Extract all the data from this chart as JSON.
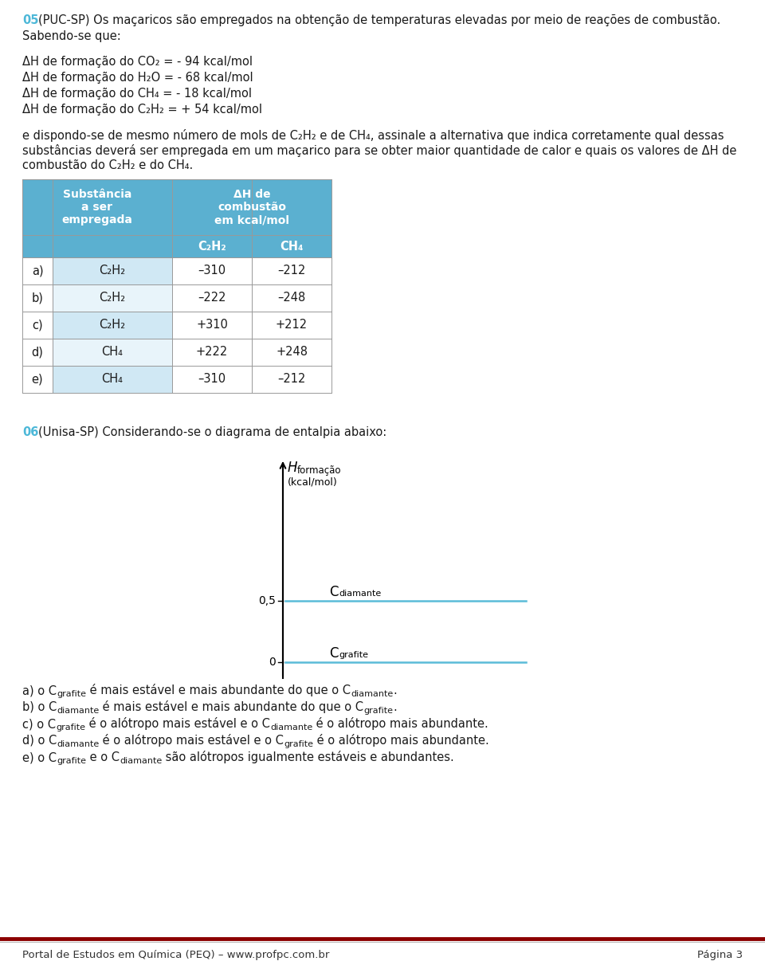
{
  "bg_color": "#ffffff",
  "q05_number": "05",
  "q05_number_color": "#4db8d8",
  "q05_header": "(PUC-SP) Os maçaricos são empregados na obtenção de temperaturas elevadas por meio de reações de combustão.",
  "q05_sabendo": "Sabendo-se que:",
  "q05_formacoes": [
    "ΔH de formação do CO₂ = - 94 kcal/mol",
    "ΔH de formação do H₂O = - 68 kcal/mol",
    "ΔH de formação do CH₄ = - 18 kcal/mol",
    "ΔH de formação do C₂H₂ = + 54 kcal/mol"
  ],
  "q05_body_lines": [
    "e dispondo-se de mesmo número de mols de C₂H₂ e de CH₄, assinale a alternativa que indica corretamente qual dessas",
    "substâncias deverá ser empregada em um maçarico para se obter maior quantidade de calor e quais os valores de ΔH de",
    "combustão do C₂H₂ e do CH₄."
  ],
  "table_header_bg": "#5bb0d0",
  "table_row_bg_even": "#d0e8f4",
  "table_row_bg_odd": "#e8f4fa",
  "table_header_col1": "Substância\na ser\nempregada",
  "table_header_col2": "ΔH de\ncombustão\nem kcal/mol",
  "table_subheader_c2h2": "C₂H₂",
  "table_subheader_ch4": "CH₄",
  "table_rows": [
    [
      "a)",
      "C₂H₂",
      "–310",
      "–212"
    ],
    [
      "b)",
      "C₂H₂",
      "–222",
      "–248"
    ],
    [
      "c)",
      "C₂H₂",
      "+310",
      "+212"
    ],
    [
      "d)",
      "CH₄",
      "+222",
      "+248"
    ],
    [
      "e)",
      "CH₄",
      "–310",
      "–212"
    ]
  ],
  "q06_number": "06",
  "q06_number_color": "#4db8d8",
  "q06_header": "(Unisa-SP) Considerando-se o diagrama de entalpia abaixo:",
  "diagram_line_color": "#5bbcd8",
  "diagram_tick_05": "0,5",
  "diagram_tick_0": "0",
  "q06_options": [
    [
      "a) o C",
      "grafite",
      " é mais estável e mais abundante do que o C",
      "diamante",
      "."
    ],
    [
      "b) o C",
      "diamante",
      " é mais estável e mais abundante do que o C",
      "grafite",
      "."
    ],
    [
      "c) o C",
      "grafite",
      " é o alótropo mais estável e o C",
      "diamante",
      " é o alótropo mais abundante."
    ],
    [
      "d) o C",
      "diamante",
      " é o alótropo mais estável e o C",
      "grafite",
      " é o alótropo mais abundante."
    ],
    [
      "e) o C",
      "grafite",
      " e o C",
      "diamante",
      " são alótropos igualmente estáveis e abundantes."
    ]
  ],
  "footer_left": "Portal de Estudos em Química (PEQ) – www.profpc.com.br",
  "footer_right": "Página 3",
  "footer_line_color1": "#8b0000",
  "footer_line_color2": "#bbbbbb"
}
